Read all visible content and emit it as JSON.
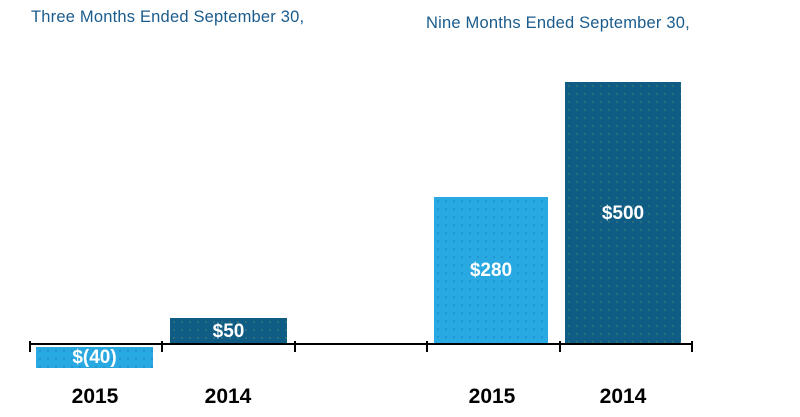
{
  "chart_data": {
    "type": "bar",
    "groups": [
      {
        "title": "Three Months Ended September 30,",
        "categories": [
          "2015",
          "2014"
        ],
        "values": [
          -40,
          50
        ],
        "labels": [
          "$(40)",
          "$50"
        ]
      },
      {
        "title": "Nine Months Ended September 30,",
        "categories": [
          "2015",
          "2014"
        ],
        "values": [
          280,
          500
        ],
        "labels": [
          "$280",
          "$500"
        ]
      }
    ],
    "series_colors": [
      "#29A9E1",
      "#0F5C84"
    ],
    "title_color": "#1B5C8C",
    "bar_label_color": "#FFFFFF",
    "axis_color": "#000000",
    "ylim": [
      -60,
      520
    ],
    "grid": false,
    "legend": false
  }
}
